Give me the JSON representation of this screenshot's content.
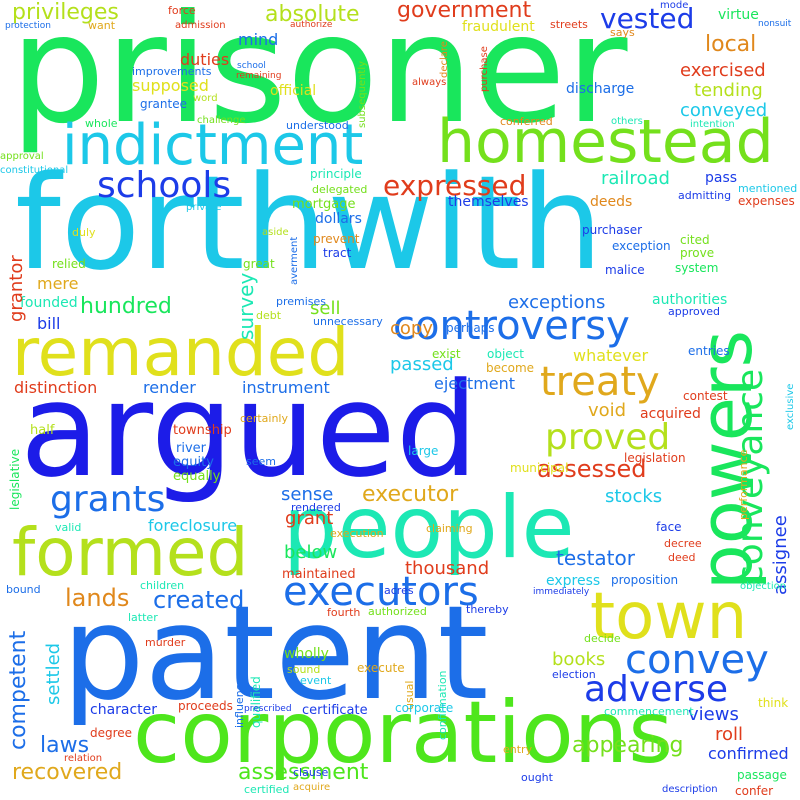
{
  "palette": {
    "green": "#19e65c",
    "lime": "#74e01c",
    "yellowgreen": "#b4e01c",
    "yellow": "#e0e01c",
    "cyan": "#1cc8e8",
    "teal": "#1ce8b4",
    "blue": "#1c6ee8",
    "royal": "#1c3ce8",
    "deepblue": "#1c1ce8",
    "orange": "#e0881c",
    "gold": "#e0a81c",
    "red": "#e03c1c",
    "tan": "#e0b81c"
  },
  "words": [
    "prisoner",
    "forthwith",
    "argued",
    "patent",
    "corporations",
    "people",
    "powers",
    "remanded",
    "formed",
    "indictment",
    "homestead",
    "town",
    "controversy",
    "treaty",
    "convey",
    "conveyance",
    "executors",
    "adverse",
    "grants",
    "proved",
    "schools",
    "expressed",
    "vested",
    "government",
    "absolute",
    "privileges",
    "local",
    "exercised",
    "tending",
    "conveyed",
    "assessed",
    "executor",
    "created",
    "lands",
    "competent",
    "recovered",
    "laws",
    "assessment",
    "appearing",
    "roll",
    "views",
    "confirmed",
    "assignee",
    "testator",
    "thousand",
    "settled",
    "books",
    "grant",
    "hundred",
    "survey",
    "exceptions",
    "sell",
    "copy",
    "passed",
    "ejectment",
    "instrument",
    "distinction",
    "render",
    "bill",
    "founded",
    "mere",
    "grantor",
    "railroad",
    "deeds",
    "themselves",
    "dollars",
    "mortgage",
    "supposed",
    "duties",
    "official",
    "mind",
    "fraudulent",
    "virtue",
    "discharge",
    "foreclosure",
    "below",
    "sense",
    "stocks",
    "void",
    "acquired",
    "whatever",
    "authorities",
    "exception",
    "purchaser",
    "pass",
    "prove",
    "cited",
    "system",
    "malice",
    "tract",
    "great",
    "relied",
    "duly",
    "prevent",
    "principle",
    "delegated",
    "admitting",
    "expenses",
    "mentioned",
    "approved",
    "perhaps",
    "unnecessary",
    "premises",
    "debt",
    "exist",
    "object",
    "become",
    "entries",
    "legislation",
    "municipal",
    "contest",
    "large",
    "river",
    "equity",
    "equally",
    "township",
    "half",
    "legislative",
    "exclusive",
    "seem",
    "certainly",
    "rendered",
    "execution",
    "valid",
    "claiming",
    "performance",
    "decree",
    "deed",
    "face",
    "express",
    "proposition",
    "objection",
    "immediately",
    "acres",
    "maintained",
    "children",
    "bound",
    "latter",
    "fourth",
    "authorized",
    "thereby",
    "decide",
    "murder",
    "influence",
    "wholly",
    "qualified",
    "sound",
    "event",
    "execute",
    "usual",
    "election",
    "confirmation",
    "character",
    "proceeds",
    "prescribed",
    "certificate",
    "corporate",
    "commencement",
    "think",
    "degree",
    "relation",
    "clause",
    "acquire",
    "certified",
    "entry",
    "ought",
    "description",
    "passage",
    "confer",
    "force",
    "want",
    "admission",
    "authorize",
    "streets",
    "says",
    "mode",
    "nonsuit",
    "protection",
    "school",
    "remaining",
    "improvements",
    "word",
    "grantee",
    "always",
    "declare",
    "subsequently",
    "purchase",
    "intention",
    "whole",
    "challenge",
    "understood",
    "conferred",
    "others",
    "approval",
    "constitutional",
    "private",
    "aside",
    "averment"
  ]
}
